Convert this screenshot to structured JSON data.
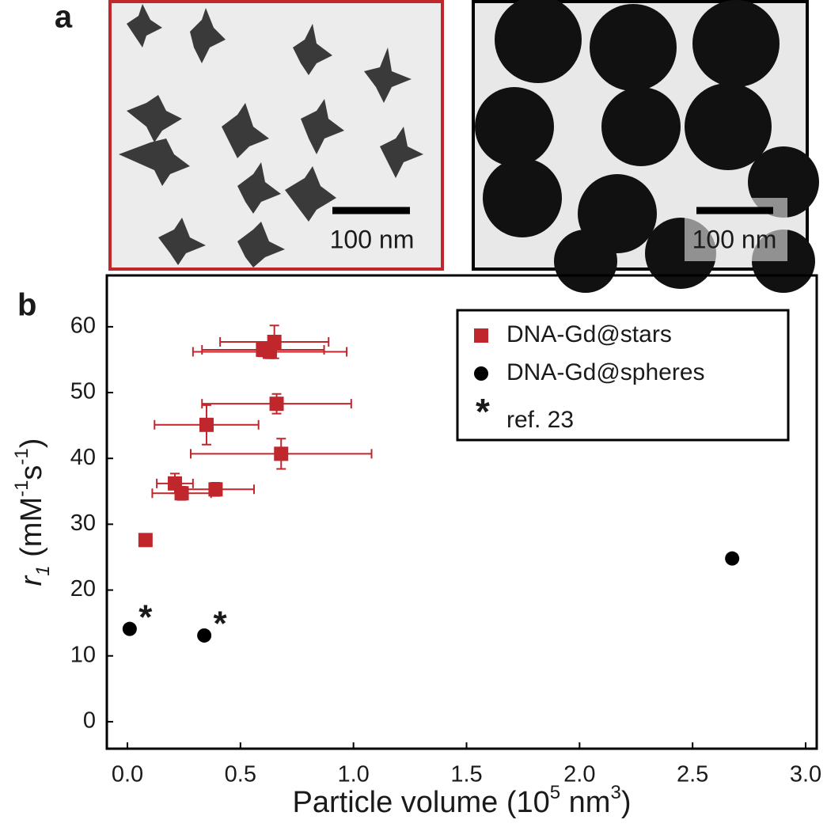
{
  "panel_a": {
    "label": "a",
    "images": [
      {
        "scale_bar": "100 nm",
        "border_color": "#c0272d"
      },
      {
        "scale_bar": "100 nm",
        "border_color": "#000000"
      }
    ]
  },
  "chart_data": {
    "type": "scatter",
    "panel_label": "b",
    "x_label_parts": [
      {
        "text": "Particle volume (10"
      },
      {
        "text": "5",
        "sup": true
      },
      {
        "text": " nm"
      },
      {
        "text": "3",
        "sup": true
      },
      {
        "text": ")"
      }
    ],
    "y_label_parts": [
      {
        "text": "r",
        "italic": true
      },
      {
        "text": "1",
        "sub": true,
        "italic": true
      },
      {
        "text": " (mM"
      },
      {
        "text": "-1",
        "sup": true
      },
      {
        "text": "s"
      },
      {
        "text": "-1",
        "sup": true
      },
      {
        "text": ")"
      }
    ],
    "xlim": [
      -0.091,
      3.049
    ],
    "ylim": [
      -4.1,
      67.8
    ],
    "xticks": [
      {
        "value": 0,
        "label": "0.0"
      },
      {
        "value": 0.5,
        "label": "0.5"
      },
      {
        "value": 1,
        "label": "1.0"
      },
      {
        "value": 1.5,
        "label": "1.5"
      },
      {
        "value": 2,
        "label": "2.0"
      },
      {
        "value": 2.5,
        "label": "2.5"
      },
      {
        "value": 3,
        "label": "3.0"
      }
    ],
    "yticks": [
      0,
      10,
      20,
      30,
      40,
      50,
      60
    ],
    "legend_position": "upper right",
    "legend_note": {
      "symbol": "*",
      "text": "ref. 23"
    },
    "series": [
      {
        "name": "DNA-Gd@stars",
        "color": "#c0272d",
        "marker": "square",
        "x": [
          0.08,
          0.21,
          0.24,
          0.39,
          0.35,
          0.66,
          0.68,
          0.6,
          0.63,
          0.65
        ],
        "values": [
          27.6,
          36.2,
          34.7,
          35.3,
          45.1,
          48.3,
          40.7,
          56.5,
          56.2,
          57.7
        ],
        "xerr": [
          0.01,
          0.08,
          0.13,
          0.17,
          0.23,
          0.33,
          0.4,
          0.27,
          0.34,
          0.24
        ],
        "yerr": [
          0.5,
          1.5,
          1,
          1,
          3,
          1.5,
          2.3,
          1,
          1,
          2.5
        ]
      },
      {
        "name": "DNA-Gd@spheres",
        "color": "#000000",
        "marker": "circle",
        "x": [
          0.01,
          0.34,
          2.675
        ],
        "values": [
          14.1,
          13.1,
          24.8
        ],
        "point_labels": [
          "*",
          "*",
          null
        ]
      }
    ]
  }
}
